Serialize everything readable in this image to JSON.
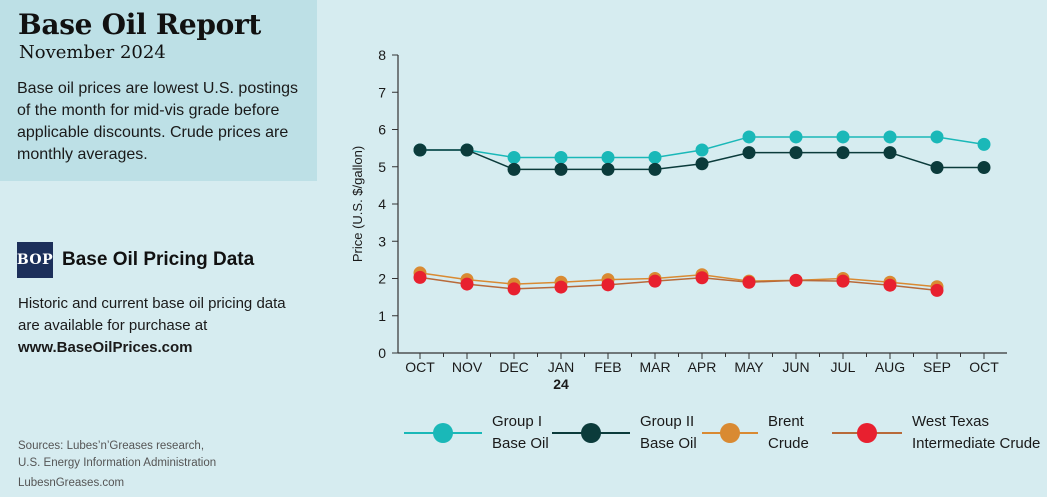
{
  "header": {
    "title": "Base Oil Report",
    "date": "November 2024",
    "intro": "Base oil prices are lowest U.S. postings of the month for mid-vis grade before applicable discounts. Crude prices are monthly averages."
  },
  "promo": {
    "logo_text": "BOP",
    "title": "Base Oil Pricing Data",
    "description": "Historic and current base oil pricing data are available for purchase at",
    "url": "www.BaseOilPrices.com"
  },
  "footer": {
    "sources_line1": "Sources: Lubes’n’Greases research,",
    "sources_line2": "U.S. Energy Information Administration",
    "site": "LubesnGreases.com"
  },
  "legend": [
    {
      "line1": "Group I",
      "line2": "Base Oil",
      "color": "#1ab8b8"
    },
    {
      "line1": "Group II",
      "line2": "Base Oil",
      "color": "#0b3b3b"
    },
    {
      "line1": "Brent",
      "line2": "Crude",
      "color": "#d98a32"
    },
    {
      "line1": "West Texas",
      "line2": "Intermediate Crude",
      "color": "#e8202f"
    }
  ],
  "chart_data": {
    "type": "line",
    "ylabel": "Price (U.S. $/gallon)",
    "xlabel": "",
    "ylim": [
      0,
      8
    ],
    "yticks": [
      0,
      1,
      2,
      3,
      4,
      5,
      6,
      7,
      8
    ],
    "categories": [
      "OCT",
      "NOV",
      "DEC",
      "JAN",
      "FEB",
      "MAR",
      "APR",
      "MAY",
      "JUN",
      "JUL",
      "AUG",
      "SEP",
      "OCT"
    ],
    "year_marker": {
      "category_index": 3,
      "label": "24"
    },
    "grid": false,
    "series": [
      {
        "name": "Group I Base Oil",
        "color": "#1ab8b8",
        "line_color": "#1ab8b8",
        "values": [
          5.45,
          5.45,
          5.25,
          5.25,
          5.25,
          5.25,
          5.45,
          5.8,
          5.8,
          5.8,
          5.8,
          5.8,
          5.6
        ]
      },
      {
        "name": "Group II Base Oil",
        "color": "#0b3b3b",
        "line_color": "#0b3b3b",
        "values": [
          5.45,
          5.45,
          4.93,
          4.93,
          4.93,
          4.93,
          5.08,
          5.38,
          5.38,
          5.38,
          5.38,
          4.98,
          4.98
        ]
      },
      {
        "name": "Brent Crude",
        "color": "#d98a32",
        "line_color": "#d98a32",
        "values": [
          2.15,
          1.97,
          1.85,
          1.9,
          1.97,
          2.0,
          2.1,
          1.93,
          1.95,
          2.0,
          1.9,
          1.78,
          null
        ]
      },
      {
        "name": "West Texas Intermediate Crude",
        "color": "#e8202f",
        "line_color": "#b86a3a",
        "values": [
          2.03,
          1.85,
          1.72,
          1.77,
          1.83,
          1.93,
          2.02,
          1.9,
          1.95,
          1.93,
          1.82,
          1.68,
          null
        ]
      }
    ]
  }
}
